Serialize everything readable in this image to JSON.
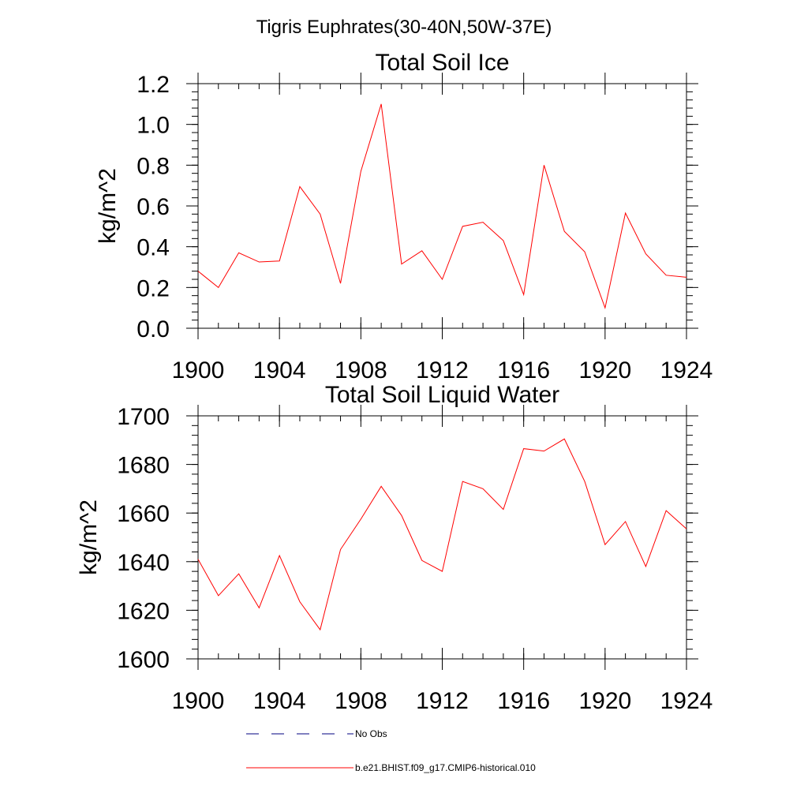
{
  "figure": {
    "title": "Tigris Euphrates(30-40N,50W-37E)"
  },
  "legend": {
    "items": [
      {
        "label": "No Obs",
        "color": "#000080",
        "dash": "dashed"
      },
      {
        "label": "b.e21.BHIST.f09_g17.CMIP6-historical.010",
        "color": "#ff0000",
        "dash": "solid"
      }
    ]
  },
  "chart_data": [
    {
      "type": "line",
      "title": "Total Soil Ice",
      "xlabel": "",
      "ylabel": "kg/m^2",
      "xlim": [
        1900,
        1924
      ],
      "ylim": [
        0.0,
        1.2
      ],
      "xticks": [
        1900,
        1904,
        1908,
        1912,
        1916,
        1920,
        1924
      ],
      "xtick_labels": [
        "1900",
        "1904",
        "1908",
        "1912",
        "1916",
        "1920",
        "1924"
      ],
      "yticks": [
        0.0,
        0.2,
        0.4,
        0.6,
        0.8,
        1.0,
        1.2
      ],
      "ytick_labels": [
        "0.0",
        "0.2",
        "0.4",
        "0.6",
        "0.8",
        "1.0",
        "1.2"
      ],
      "grid": false,
      "x": [
        1900,
        1901,
        1902,
        1903,
        1904,
        1905,
        1906,
        1907,
        1908,
        1909,
        1910,
        1911,
        1912,
        1913,
        1914,
        1915,
        1916,
        1917,
        1918,
        1919,
        1920,
        1921,
        1922,
        1923,
        1924
      ],
      "series": [
        {
          "color": "#ff0000",
          "values": [
            0.28,
            0.2,
            0.37,
            0.325,
            0.33,
            0.695,
            0.56,
            0.22,
            0.77,
            1.1,
            0.315,
            0.38,
            0.24,
            0.5,
            0.52,
            0.43,
            0.165,
            0.8,
            0.475,
            0.375,
            0.1,
            0.565,
            0.365,
            0.26,
            0.25
          ]
        }
      ]
    },
    {
      "type": "line",
      "title": "Total Soil Liquid Water",
      "xlabel": "",
      "ylabel": "kg/m^2",
      "xlim": [
        1900,
        1924
      ],
      "ylim": [
        1600,
        1700
      ],
      "xticks": [
        1900,
        1904,
        1908,
        1912,
        1916,
        1920,
        1924
      ],
      "xtick_labels": [
        "1900",
        "1904",
        "1908",
        "1912",
        "1916",
        "1920",
        "1924"
      ],
      "yticks": [
        1600,
        1620,
        1640,
        1660,
        1680,
        1700
      ],
      "ytick_labels": [
        "1600",
        "1620",
        "1640",
        "1660",
        "1680",
        "1700"
      ],
      "grid": false,
      "x": [
        1900,
        1901,
        1902,
        1903,
        1904,
        1905,
        1906,
        1907,
        1908,
        1909,
        1910,
        1911,
        1912,
        1913,
        1914,
        1915,
        1916,
        1917,
        1918,
        1919,
        1920,
        1921,
        1922,
        1923,
        1924
      ],
      "series": [
        {
          "color": "#ff0000",
          "values": [
            1641,
            1626,
            1635,
            1621,
            1642.5,
            1623.5,
            1612,
            1645,
            1657.5,
            1671,
            1659,
            1640.5,
            1636,
            1673,
            1670,
            1661.5,
            1686.5,
            1685.5,
            1690.5,
            1673,
            1647,
            1656.5,
            1638,
            1661,
            1653.5
          ]
        }
      ]
    }
  ]
}
